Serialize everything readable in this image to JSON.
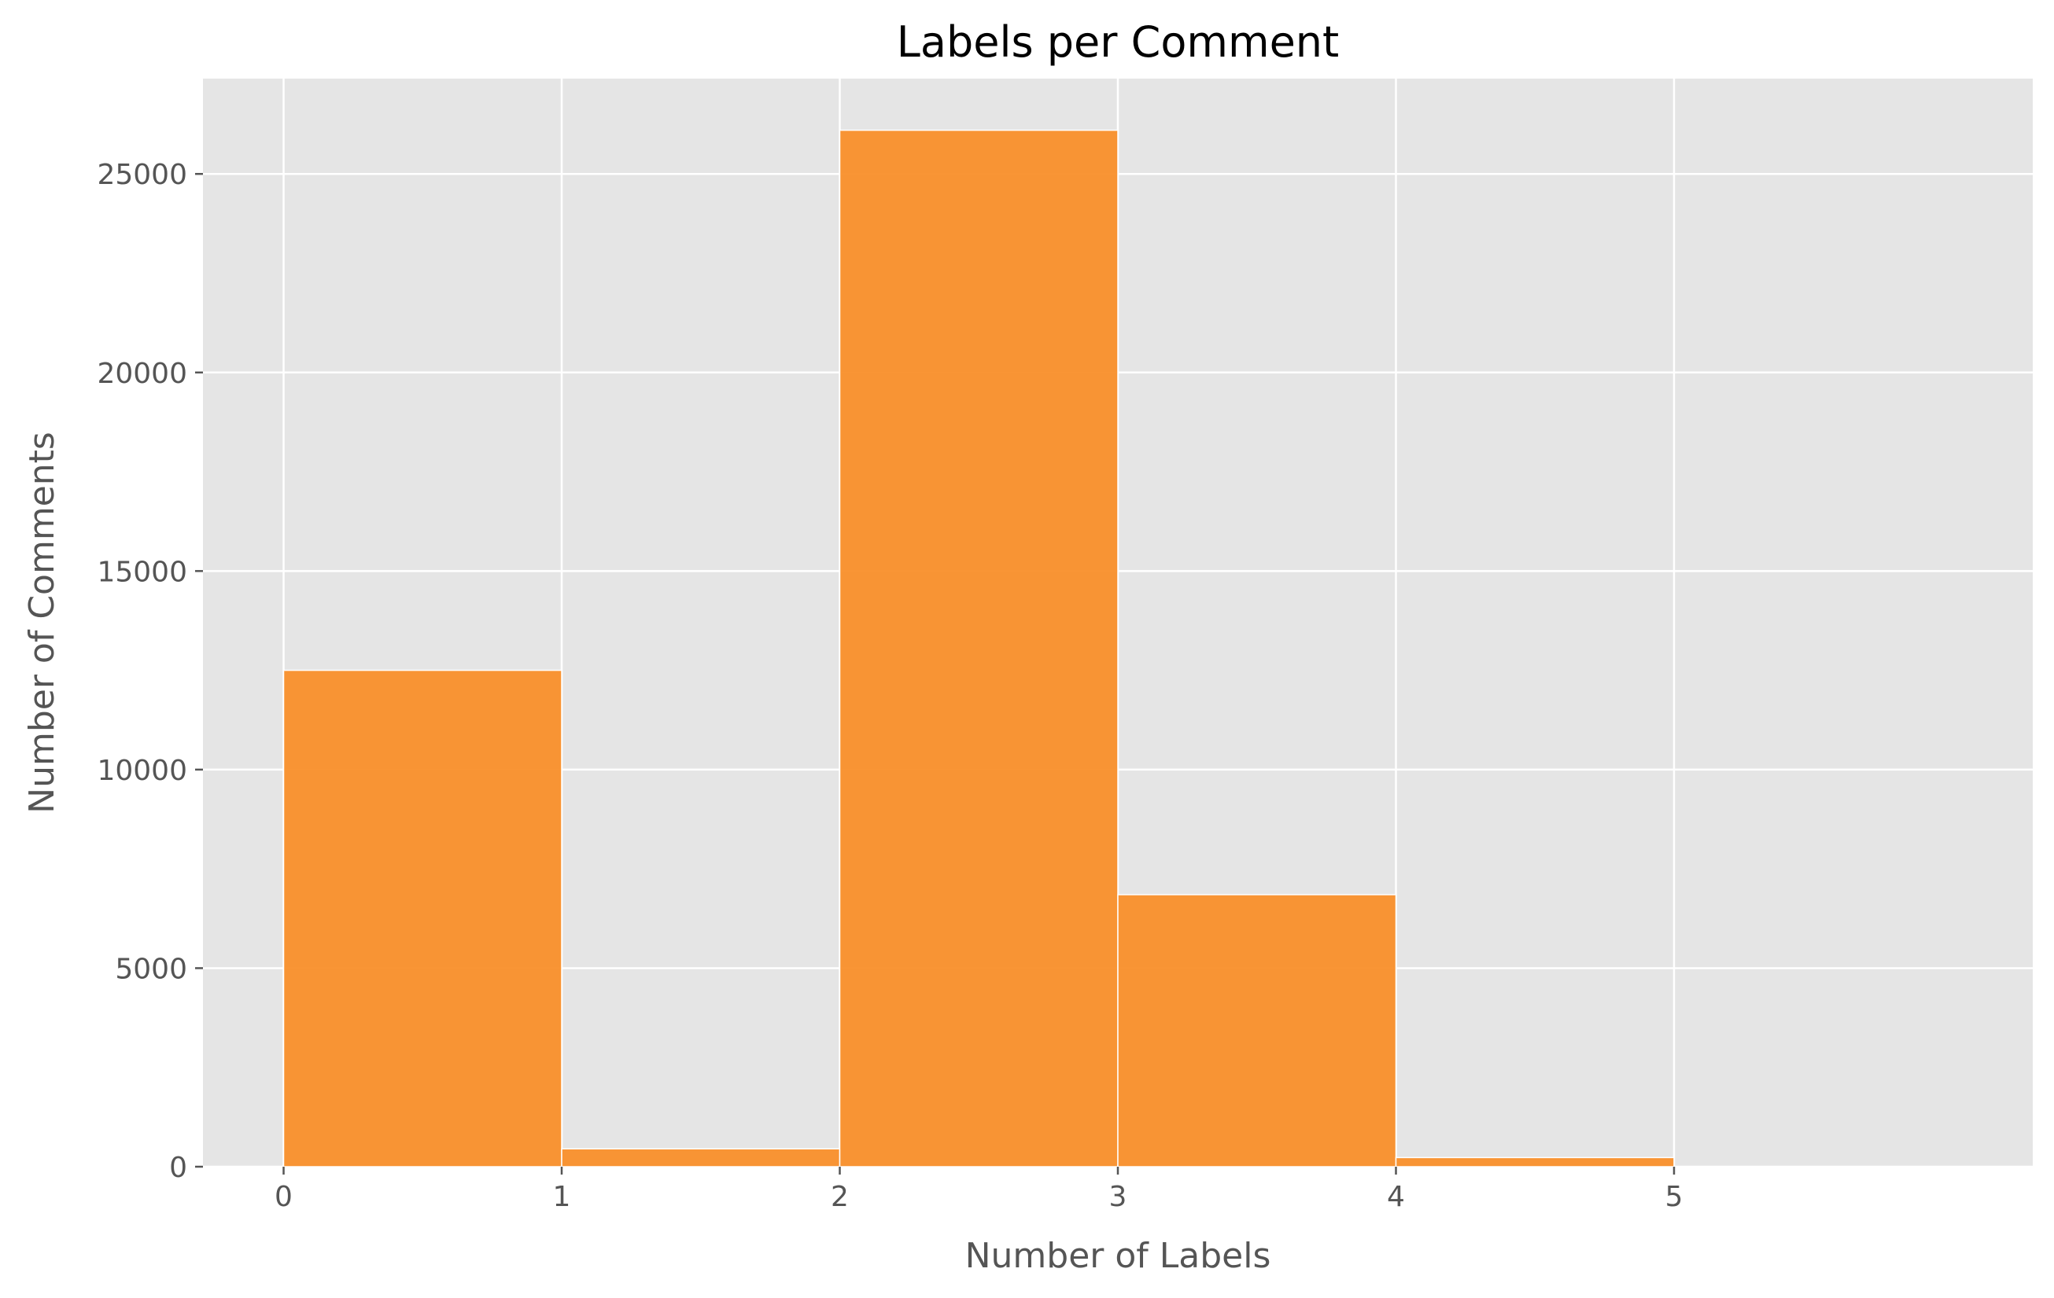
{
  "chart_data": {
    "type": "bar",
    "title": "Labels per Comment",
    "xlabel": "Number of Labels",
    "ylabel": "Number of Comments",
    "bins": [
      {
        "x_start": 0,
        "x_end": 1,
        "value": 12500
      },
      {
        "x_start": 1,
        "x_end": 2,
        "value": 450
      },
      {
        "x_start": 2,
        "x_end": 3,
        "value": 26100
      },
      {
        "x_start": 3,
        "x_end": 4,
        "value": 6850
      },
      {
        "x_start": 4,
        "x_end": 5,
        "value": 230
      }
    ],
    "x_ticks": [
      "0",
      "1",
      "2",
      "3",
      "4",
      "5"
    ],
    "y_ticks": [
      "0",
      "5000",
      "10000",
      "15000",
      "20000",
      "25000"
    ],
    "xlim": [
      -0.29,
      6.29
    ],
    "ylim": [
      0,
      27400
    ],
    "grid": true,
    "colors": {
      "bar": "#f98f2a",
      "plot_background": "#e5e5e5",
      "grid": "#ffffff"
    }
  }
}
